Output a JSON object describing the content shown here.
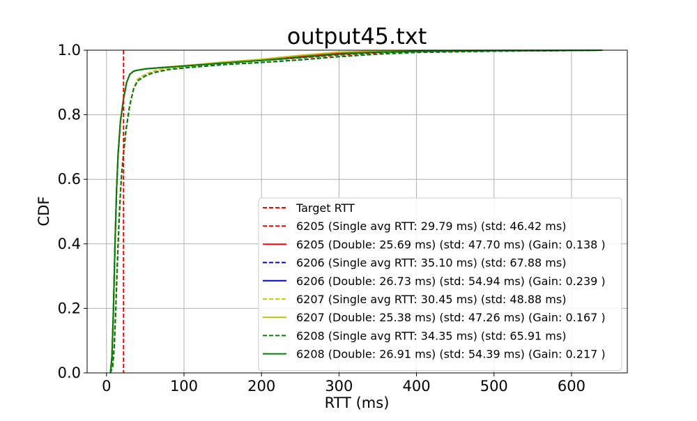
{
  "chart_data": {
    "type": "line",
    "title": "output45.txt",
    "xlabel": "RTT (ms)",
    "ylabel": "CDF",
    "xlim": [
      -25,
      672
    ],
    "ylim": [
      0,
      1.0
    ],
    "xticks": [
      0,
      100,
      200,
      300,
      400,
      500,
      600
    ],
    "xtick_labels": [
      "0",
      "100",
      "200",
      "300",
      "400",
      "500",
      "600"
    ],
    "yticks": [
      0,
      0.2,
      0.4,
      0.6,
      0.8,
      1.0
    ],
    "ytick_labels": [
      "0.0",
      "0.2",
      "0.4",
      "0.6",
      "0.8",
      "1.0"
    ],
    "grid": true,
    "legend_position": "lower-right",
    "target_rtt": 22,
    "series": [
      {
        "name": "Target RTT",
        "color": "#ff0000",
        "style": "dashed",
        "kind": "vline",
        "x": 22
      },
      {
        "name": "6205 (Single avg RTT: 29.79 ms) (std: 46.42 ms)",
        "color": "#ff0000",
        "style": "dashed",
        "x": [
          5,
          8,
          10,
          12,
          14,
          16,
          18,
          20,
          22,
          25,
          30,
          35,
          40,
          50,
          60,
          80,
          100,
          150,
          200,
          250,
          300,
          350,
          400,
          500,
          600,
          640
        ],
        "y": [
          0,
          0.02,
          0.08,
          0.2,
          0.34,
          0.46,
          0.56,
          0.63,
          0.68,
          0.75,
          0.83,
          0.88,
          0.91,
          0.925,
          0.935,
          0.945,
          0.95,
          0.96,
          0.968,
          0.976,
          0.985,
          0.992,
          0.996,
          0.998,
          0.999,
          1.0
        ]
      },
      {
        "name": "6205 (Double: 25.69 ms) (std: 47.70 ms) (Gain: 0.138 )",
        "color": "#ff0000",
        "style": "solid",
        "x": [
          5,
          7,
          9,
          11,
          13,
          15,
          18,
          22,
          26,
          30,
          35,
          40,
          50,
          70,
          100,
          150,
          200,
          250,
          300,
          350,
          400,
          500,
          640
        ],
        "y": [
          0,
          0.05,
          0.2,
          0.4,
          0.57,
          0.68,
          0.78,
          0.85,
          0.9,
          0.925,
          0.935,
          0.938,
          0.942,
          0.946,
          0.952,
          0.962,
          0.97,
          0.98,
          0.99,
          0.996,
          0.998,
          0.999,
          1.0
        ]
      },
      {
        "name": "6206 (Single avg RTT: 35.10 ms) (std: 67.88 ms)",
        "color": "#0000cc",
        "style": "dashed",
        "x": [
          5,
          8,
          10,
          12,
          14,
          16,
          18,
          20,
          22,
          25,
          30,
          35,
          40,
          50,
          60,
          80,
          100,
          150,
          200,
          250,
          300,
          350,
          400,
          500,
          600,
          640
        ],
        "y": [
          0,
          0.02,
          0.08,
          0.2,
          0.34,
          0.46,
          0.56,
          0.63,
          0.68,
          0.75,
          0.83,
          0.88,
          0.905,
          0.92,
          0.93,
          0.94,
          0.945,
          0.955,
          0.962,
          0.97,
          0.98,
          0.988,
          0.993,
          0.997,
          0.999,
          1.0
        ]
      },
      {
        "name": "6206 (Double: 26.73 ms) (std: 54.94 ms) (Gain: 0.239 )",
        "color": "#0000cc",
        "style": "solid",
        "x": [
          5,
          7,
          9,
          11,
          13,
          15,
          18,
          22,
          26,
          30,
          35,
          40,
          50,
          70,
          100,
          150,
          200,
          250,
          300,
          350,
          400,
          500,
          640
        ],
        "y": [
          0,
          0.05,
          0.2,
          0.4,
          0.57,
          0.68,
          0.78,
          0.85,
          0.9,
          0.925,
          0.935,
          0.938,
          0.942,
          0.946,
          0.951,
          0.96,
          0.968,
          0.978,
          0.988,
          0.994,
          0.997,
          0.999,
          1.0
        ]
      },
      {
        "name": "6207 (Single avg RTT: 30.45 ms) (std: 48.88 ms)",
        "color": "#cccc00",
        "style": "dashed",
        "x": [
          5,
          8,
          10,
          12,
          14,
          16,
          18,
          20,
          22,
          25,
          30,
          35,
          40,
          50,
          60,
          80,
          100,
          150,
          200,
          250,
          300,
          350,
          400,
          500,
          600,
          640
        ],
        "y": [
          0,
          0.02,
          0.08,
          0.2,
          0.34,
          0.46,
          0.56,
          0.63,
          0.68,
          0.75,
          0.83,
          0.88,
          0.91,
          0.925,
          0.935,
          0.944,
          0.95,
          0.96,
          0.968,
          0.978,
          0.988,
          0.995,
          0.997,
          0.999,
          0.999,
          1.0
        ]
      },
      {
        "name": "6207 (Double: 25.38 ms) (std: 47.26 ms) (Gain: 0.167 )",
        "color": "#bfbf00",
        "style": "solid",
        "x": [
          5,
          7,
          9,
          11,
          13,
          15,
          18,
          22,
          26,
          30,
          35,
          40,
          50,
          70,
          100,
          150,
          200,
          250,
          300,
          350,
          400,
          500,
          640
        ],
        "y": [
          0,
          0.05,
          0.2,
          0.4,
          0.57,
          0.68,
          0.78,
          0.85,
          0.9,
          0.925,
          0.935,
          0.938,
          0.942,
          0.946,
          0.952,
          0.963,
          0.972,
          0.984,
          0.994,
          0.998,
          0.999,
          1.0,
          1.0
        ]
      },
      {
        "name": "6208 (Single avg RTT: 34.35 ms) (std: 65.91 ms)",
        "color": "#008000",
        "style": "dashed",
        "x": [
          5,
          8,
          10,
          12,
          14,
          16,
          18,
          20,
          22,
          25,
          30,
          35,
          40,
          50,
          60,
          80,
          100,
          150,
          200,
          250,
          300,
          350,
          400,
          500,
          600,
          640
        ],
        "y": [
          0,
          0.02,
          0.08,
          0.2,
          0.34,
          0.46,
          0.56,
          0.63,
          0.68,
          0.75,
          0.83,
          0.88,
          0.905,
          0.92,
          0.93,
          0.94,
          0.945,
          0.955,
          0.962,
          0.97,
          0.98,
          0.988,
          0.993,
          0.997,
          0.999,
          1.0
        ]
      },
      {
        "name": "6208 (Double: 26.91 ms) (std: 54.39 ms) (Gain: 0.217 )",
        "color": "#008000",
        "style": "solid",
        "x": [
          5,
          7,
          9,
          11,
          13,
          15,
          18,
          22,
          26,
          30,
          35,
          40,
          50,
          70,
          100,
          150,
          200,
          250,
          300,
          350,
          400,
          500,
          640
        ],
        "y": [
          0,
          0.05,
          0.2,
          0.4,
          0.57,
          0.68,
          0.78,
          0.85,
          0.9,
          0.925,
          0.935,
          0.938,
          0.942,
          0.946,
          0.951,
          0.96,
          0.968,
          0.978,
          0.988,
          0.994,
          0.997,
          0.999,
          1.0
        ]
      }
    ]
  }
}
